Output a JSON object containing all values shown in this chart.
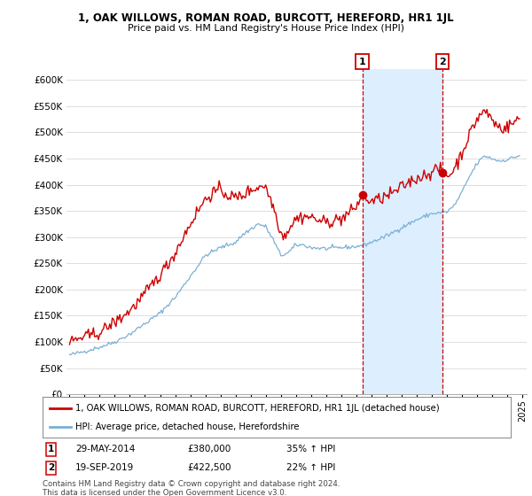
{
  "title": "1, OAK WILLOWS, ROMAN ROAD, BURCOTT, HEREFORD, HR1 1JL",
  "subtitle": "Price paid vs. HM Land Registry's House Price Index (HPI)",
  "ylim": [
    0,
    620000
  ],
  "yticks": [
    0,
    50000,
    100000,
    150000,
    200000,
    250000,
    300000,
    350000,
    400000,
    450000,
    500000,
    550000,
    600000
  ],
  "xlim_start": 1995.0,
  "xlim_end": 2025.3,
  "background_color": "#ffffff",
  "grid_color": "#dddddd",
  "property_color": "#cc0000",
  "hpi_color": "#7ab0d4",
  "shade_color": "#ddeeff",
  "legend_property": "1, OAK WILLOWS, ROMAN ROAD, BURCOTT, HEREFORD, HR1 1JL (detached house)",
  "legend_hpi": "HPI: Average price, detached house, Herefordshire",
  "transaction1_date": 2014.41,
  "transaction1_label": "1",
  "transaction1_price": 380000,
  "transaction1_display": "29-MAY-2014",
  "transaction1_pct": "35% ↑ HPI",
  "transaction2_date": 2019.72,
  "transaction2_label": "2",
  "transaction2_price": 422500,
  "transaction2_display": "19-SEP-2019",
  "transaction2_pct": "22% ↑ HPI",
  "footnote": "Contains HM Land Registry data © Crown copyright and database right 2024.\nThis data is licensed under the Open Government Licence v3.0."
}
